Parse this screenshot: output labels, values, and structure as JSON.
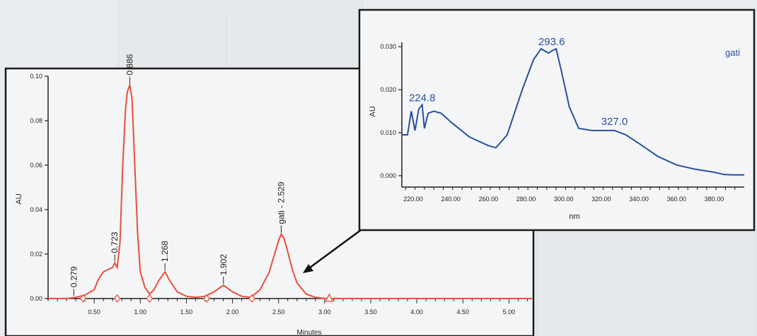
{
  "chart_data": [
    {
      "type": "line",
      "title": "",
      "xlabel": "Minutes",
      "ylabel": "AU",
      "xlim": [
        0.0,
        5.25
      ],
      "ylim": [
        -0.001,
        0.1
      ],
      "x_ticks": [
        0.5,
        1.0,
        1.5,
        2.0,
        2.5,
        3.0,
        3.5,
        4.0,
        4.5,
        5.0
      ],
      "x_tick_labels": [
        "0.50",
        "1.00",
        "1.50",
        "2.00",
        "2.50",
        "3.00",
        "3.50",
        "4.00",
        "4.50",
        "5.00"
      ],
      "y_ticks": [
        0.0,
        0.02,
        0.04,
        0.06,
        0.08,
        0.1
      ],
      "y_tick_labels": [
        "0.00",
        "0.02",
        "0.04",
        "0.06",
        "0.08",
        "0.10"
      ],
      "color": "#e8503a",
      "grid": false,
      "peaks": [
        {
          "label": "0.279",
          "x": 0.279,
          "y": 0.0005
        },
        {
          "label": "0.723",
          "x": 0.723,
          "y": 0.016
        },
        {
          "label": "0.886",
          "x": 0.886,
          "y": 0.096
        },
        {
          "label": "1.268",
          "x": 1.268,
          "y": 0.012
        },
        {
          "label": "1.902",
          "x": 1.902,
          "y": 0.006
        },
        {
          "label": "gati - 2.529",
          "x": 2.529,
          "y": 0.029
        }
      ],
      "x": [
        0.0,
        0.1,
        0.2,
        0.3,
        0.4,
        0.5,
        0.55,
        0.6,
        0.65,
        0.7,
        0.723,
        0.75,
        0.78,
        0.81,
        0.84,
        0.86,
        0.886,
        0.91,
        0.94,
        0.97,
        1.0,
        1.05,
        1.1,
        1.15,
        1.2,
        1.268,
        1.32,
        1.4,
        1.5,
        1.6,
        1.7,
        1.8,
        1.902,
        2.0,
        2.1,
        2.2,
        2.3,
        2.4,
        2.45,
        2.5,
        2.529,
        2.56,
        2.6,
        2.65,
        2.7,
        2.8,
        2.9,
        3.0,
        3.2,
        3.5,
        4.0,
        4.5,
        5.0,
        5.25
      ],
      "y": [
        0.0,
        0.0,
        0.0,
        0.0005,
        0.0015,
        0.004,
        0.009,
        0.012,
        0.013,
        0.014,
        0.016,
        0.014,
        0.025,
        0.06,
        0.085,
        0.093,
        0.096,
        0.09,
        0.06,
        0.03,
        0.012,
        0.005,
        0.002,
        0.004,
        0.008,
        0.012,
        0.008,
        0.003,
        0.001,
        0.0005,
        0.001,
        0.003,
        0.006,
        0.003,
        0.001,
        0.0005,
        0.004,
        0.012,
        0.019,
        0.026,
        0.029,
        0.027,
        0.021,
        0.013,
        0.007,
        0.002,
        0.0005,
        0.0,
        0.0,
        0.0,
        0.0,
        0.0,
        0.0,
        0.0
      ],
      "markers": [
        {
          "shape": "diamond",
          "x": 0.38,
          "y": 0.0
        },
        {
          "shape": "diamond",
          "x": 0.75,
          "y": 0.0
        },
        {
          "shape": "diamond",
          "x": 1.1,
          "y": 0.0
        },
        {
          "shape": "diamond",
          "x": 1.72,
          "y": 0.0
        },
        {
          "shape": "diamond",
          "x": 2.21,
          "y": 0.0
        },
        {
          "shape": "triangle",
          "x": 3.05,
          "y": 0.0
        }
      ]
    },
    {
      "type": "line",
      "title": "",
      "xlabel": "nm",
      "ylabel": "AU",
      "legend": "gati",
      "legend_placement": "top-right",
      "xlim": [
        214,
        396
      ],
      "ylim": [
        -0.001,
        0.031
      ],
      "x_ticks": [
        220,
        240,
        260,
        280,
        300,
        320,
        340,
        360,
        380
      ],
      "x_tick_labels": [
        "220.00",
        "240.00",
        "260.00",
        "280.00",
        "300.00",
        "320.00",
        "340.00",
        "360.00",
        "380.00"
      ],
      "y_ticks": [
        0.0,
        0.01,
        0.02,
        0.03
      ],
      "y_tick_labels": [
        "0.000",
        "0.010",
        "0.020",
        "0.030"
      ],
      "color": "#2a4fa0",
      "grid": false,
      "annotations": [
        {
          "label": "224.8",
          "x": 224.8,
          "y": 0.016
        },
        {
          "label": "293.6",
          "x": 293.6,
          "y": 0.029
        },
        {
          "label": "327.0",
          "x": 327.0,
          "y": 0.0105
        }
      ],
      "x": [
        214,
        217,
        219,
        221,
        223,
        224.8,
        226,
        228,
        231,
        235,
        240,
        250,
        260,
        264,
        270,
        278,
        284,
        288,
        292,
        293.6,
        296,
        299,
        303,
        308,
        315,
        320,
        327,
        333,
        340,
        350,
        360,
        370,
        380,
        385,
        390,
        396
      ],
      "y": [
        0.0095,
        0.0095,
        0.015,
        0.0105,
        0.0155,
        0.0165,
        0.011,
        0.0145,
        0.015,
        0.0145,
        0.0125,
        0.009,
        0.007,
        0.0065,
        0.0095,
        0.02,
        0.027,
        0.0295,
        0.0285,
        0.029,
        0.0295,
        0.024,
        0.016,
        0.011,
        0.0105,
        0.0105,
        0.0105,
        0.0095,
        0.0075,
        0.0045,
        0.0025,
        0.0015,
        0.0008,
        0.0003,
        0.0002,
        0.0002
      ]
    }
  ]
}
